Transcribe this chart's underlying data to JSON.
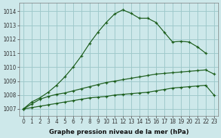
{
  "xlabel": "Graphe pression niveau de la mer (hPa)",
  "x": [
    0,
    1,
    2,
    3,
    4,
    5,
    6,
    7,
    8,
    9,
    10,
    11,
    12,
    13,
    14,
    15,
    16,
    17,
    18,
    19,
    20,
    21,
    22,
    23
  ],
  "line1_y": [
    1007.0,
    1007.5,
    1007.8,
    1008.2,
    1008.7,
    1009.3,
    1010.0,
    1010.8,
    1011.7,
    1012.5,
    1013.2,
    1013.8,
    1014.1,
    1013.85,
    1013.5,
    1013.5,
    1013.2,
    1012.5,
    1011.8,
    1011.85,
    1011.8,
    1011.45,
    1011.0,
    null
  ],
  "line2_y": [
    1007.0,
    1007.35,
    1007.7,
    1007.9,
    1008.05,
    1008.15,
    1008.3,
    1008.45,
    1008.6,
    1008.75,
    1008.9,
    1009.0,
    1009.1,
    1009.2,
    1009.3,
    1009.4,
    1009.5,
    1009.55,
    1009.6,
    1009.65,
    1009.7,
    1009.75,
    1009.8,
    1009.5
  ],
  "line3_y": [
    1007.0,
    1007.1,
    1007.2,
    1007.3,
    1007.4,
    1007.5,
    1007.6,
    1007.7,
    1007.8,
    1007.85,
    1007.9,
    1008.0,
    1008.05,
    1008.1,
    1008.15,
    1008.2,
    1008.3,
    1008.4,
    1008.5,
    1008.55,
    1008.6,
    1008.65,
    1008.7,
    1008.0
  ],
  "background_color": "#cde8ea",
  "grid_color": "#9dc8ca",
  "line_color": "#1a5c1a",
  "ylim_min": 1006.5,
  "ylim_max": 1014.6,
  "xlim_min": -0.5,
  "xlim_max": 23.5,
  "yticks": [
    1007,
    1008,
    1009,
    1010,
    1011,
    1012,
    1013,
    1014
  ],
  "xticks": [
    0,
    1,
    2,
    3,
    4,
    5,
    6,
    7,
    8,
    9,
    10,
    11,
    12,
    13,
    14,
    15,
    16,
    17,
    18,
    19,
    20,
    21,
    22,
    23
  ],
  "tick_fontsize": 5.5,
  "xlabel_fontsize": 6.5
}
